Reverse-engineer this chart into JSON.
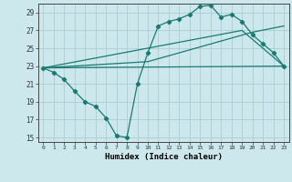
{
  "xlabel": "Humidex (Indice chaleur)",
  "bg_color": "#cce8ec",
  "grid_color": "#aacdd4",
  "line_color": "#1a7a72",
  "xlim": [
    -0.5,
    23.5
  ],
  "ylim": [
    14.5,
    30.0
  ],
  "yticks": [
    15,
    17,
    19,
    21,
    23,
    25,
    27,
    29
  ],
  "xticks": [
    0,
    1,
    2,
    3,
    4,
    5,
    6,
    7,
    8,
    9,
    10,
    11,
    12,
    13,
    14,
    15,
    16,
    17,
    18,
    19,
    20,
    21,
    22,
    23
  ],
  "line1_x": [
    0,
    1,
    2,
    3,
    4,
    5,
    6,
    7,
    8,
    9,
    10,
    11,
    12,
    13,
    14,
    15,
    16,
    17,
    18,
    19,
    20,
    21,
    22,
    23
  ],
  "line1_y": [
    22.8,
    22.3,
    21.5,
    20.2,
    19.0,
    18.5,
    17.2,
    15.2,
    15.0,
    21.0,
    24.5,
    27.5,
    28.0,
    28.3,
    28.8,
    29.7,
    29.8,
    28.5,
    28.8,
    28.0,
    26.5,
    25.5,
    24.5,
    23.0
  ],
  "line2_x": [
    0,
    23
  ],
  "line2_y": [
    22.8,
    23.0
  ],
  "line3_x": [
    0,
    10,
    20,
    23
  ],
  "line3_y": [
    22.8,
    23.5,
    26.8,
    27.5
  ],
  "line4_x": [
    0,
    19,
    23
  ],
  "line4_y": [
    22.8,
    27.0,
    23.0
  ]
}
